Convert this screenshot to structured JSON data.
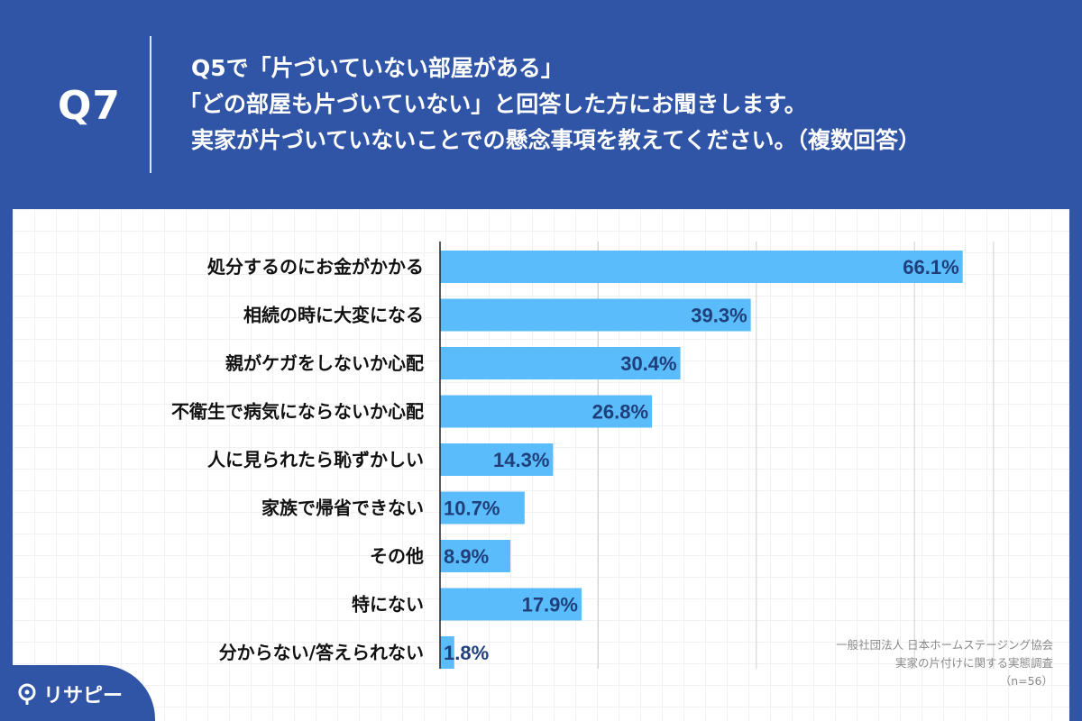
{
  "header": {
    "qnum": "Q7",
    "line1": "Q5で「片づいていない部屋がある」",
    "line2": "「どの部屋も片づいていない」と回答した方にお聞きします。",
    "line3": "実家が片づいていないことでの懸念事項を教えてください。（複数回答）"
  },
  "chart_data": {
    "type": "bar",
    "orientation": "horizontal",
    "categories": [
      "処分するのにお金がかかる",
      "相続の時に大変になる",
      "親がケガをしないか心配",
      "不衛生で病気にならないか心配",
      "人に見られたら恥ずかしい",
      "家族で帰省できない",
      "その他",
      "特にない",
      "分からない/答えられない"
    ],
    "values": [
      66.1,
      39.3,
      30.4,
      26.8,
      14.3,
      10.7,
      8.9,
      17.9,
      1.8
    ],
    "value_labels": [
      "66.1%",
      "39.3%",
      "30.4%",
      "26.8%",
      "14.3%",
      "10.7%",
      "8.9%",
      "17.9%",
      "1.8%"
    ],
    "xlim": [
      0,
      70
    ],
    "grid": true,
    "bar_color": "#5bbcfb",
    "label_color": "#1f3f7a"
  },
  "source": {
    "line1": "一般社団法人 日本ホームステージング協会",
    "line2": "実家の片付けに関する実態調査",
    "line3": "（n=56）"
  },
  "logo": {
    "text": "リサピー",
    "icon": "location-pin-icon"
  },
  "colors": {
    "background": "#3155a6",
    "panel": "#ffffff"
  }
}
